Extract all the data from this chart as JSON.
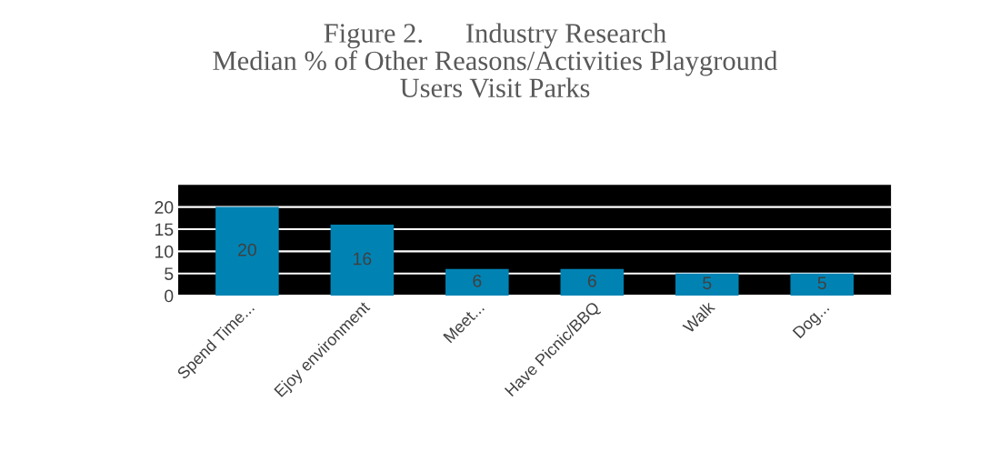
{
  "chart_data": {
    "type": "bar",
    "title": "Figure 2.      Industry Research\nMedian % of Other Reasons/Activities Playground\nUsers Visit Parks",
    "categories": [
      "Spend Time...",
      "Ejoy environment",
      "Meet...",
      "Have Picnic/BBQ",
      "Walk",
      "Dog..."
    ],
    "values": [
      20,
      16,
      6,
      6,
      5,
      5
    ],
    "color": "#0083b3",
    "ylim": [
      0,
      25
    ],
    "yticks": [
      0,
      5,
      10,
      15,
      20
    ],
    "grid": "y",
    "data_labels": true
  }
}
